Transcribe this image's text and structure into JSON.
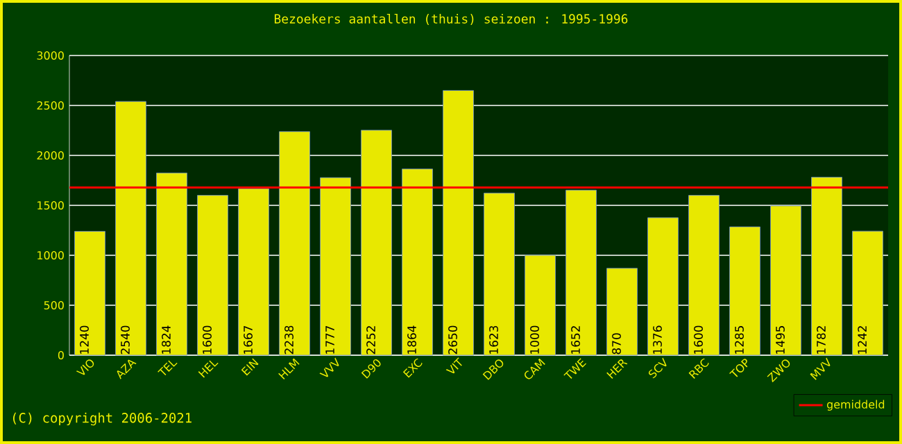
{
  "chart_data": {
    "type": "bar",
    "title": "Bezoekers aantallen (thuis) seizoen : 1995-1996",
    "categories": [
      "VIO",
      "AZA",
      "TEL",
      "HEL",
      "EIN",
      "HLM",
      "VVV",
      "D90",
      "EXC",
      "VIT",
      "DBO",
      "CAM",
      "TWE",
      "HER",
      "SCV",
      "RBC",
      "TOP",
      "ZWO",
      "MVV",
      null
    ],
    "values": [
      1240,
      2540,
      1824,
      1600,
      1667,
      2238,
      1777,
      2252,
      1864,
      2650,
      1623,
      1000,
      1652,
      870,
      1376,
      1600,
      1285,
      1495,
      1782,
      1242
    ],
    "color": "#e8e800",
    "ylim": [
      0,
      3000
    ],
    "yticks": [
      0,
      500,
      1000,
      1500,
      2000,
      2500,
      3000
    ],
    "grid": "y",
    "data_labels": true,
    "legend": "bottom right",
    "ref_lines": [
      {
        "axis": "y",
        "value": 1679,
        "label": "gemiddeld",
        "color": "#ff0000"
      }
    ],
    "annotations": [
      "(C) copyright 2006-2021"
    ]
  }
}
